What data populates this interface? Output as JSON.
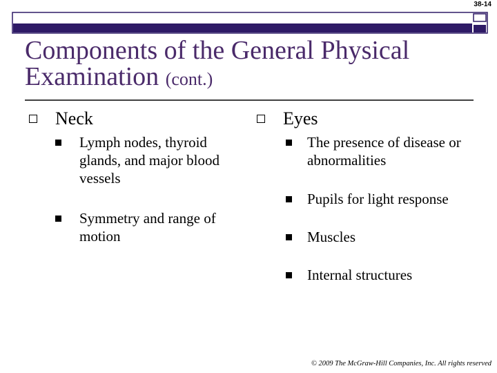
{
  "header": {
    "slide_number": "38-14",
    "title": "Components of the General Physical Examination",
    "title_suffix": "(cont.)"
  },
  "columns": [
    {
      "heading": "Neck",
      "items": [
        "Lymph nodes, thyroid glands, and major blood vessels",
        "Symmetry and range of motion"
      ]
    },
    {
      "heading": "Eyes",
      "items": [
        "The presence of disease or abnormalities",
        "Pupils for light response",
        "Muscles",
        "Internal structures"
      ]
    }
  ],
  "footer": {
    "copyright": "© 2009 The McGraw-Hill Companies, Inc. All rights reserved"
  }
}
